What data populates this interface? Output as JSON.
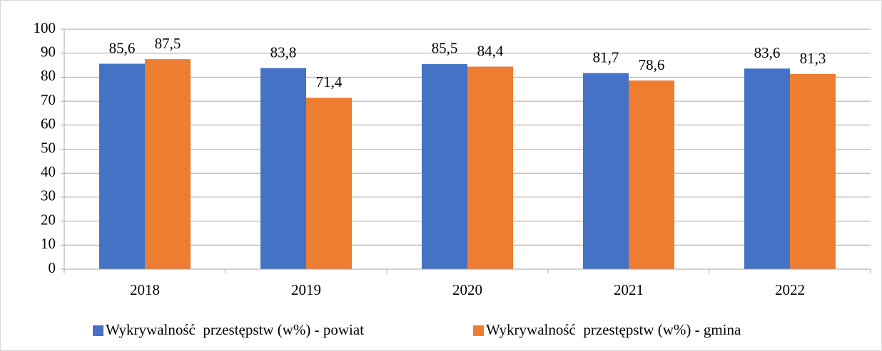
{
  "chart_data": {
    "type": "bar",
    "categories": [
      "2018",
      "2019",
      "2020",
      "2021",
      "2022"
    ],
    "series": [
      {
        "name": "Wykrywalność  przestępstw (w%) - powiat",
        "color": "#4472c4",
        "values": [
          85.6,
          83.8,
          85.5,
          81.7,
          83.6
        ],
        "value_labels": [
          "85,6",
          "83,8",
          "85,5",
          "81,7",
          "83,6"
        ]
      },
      {
        "name": "Wykrywalność  przestępstw (w%) - gmina",
        "color": "#ed7d31",
        "values": [
          87.5,
          71.4,
          84.4,
          78.6,
          81.3
        ],
        "value_labels": [
          "87,5",
          "71,4",
          "84,4",
          "78,6",
          "81,3"
        ]
      }
    ],
    "ylim": [
      0,
      100
    ],
    "yticks": [
      0,
      10,
      20,
      30,
      40,
      50,
      60,
      70,
      80,
      90,
      100
    ],
    "grid": true,
    "legend": "bottom"
  }
}
